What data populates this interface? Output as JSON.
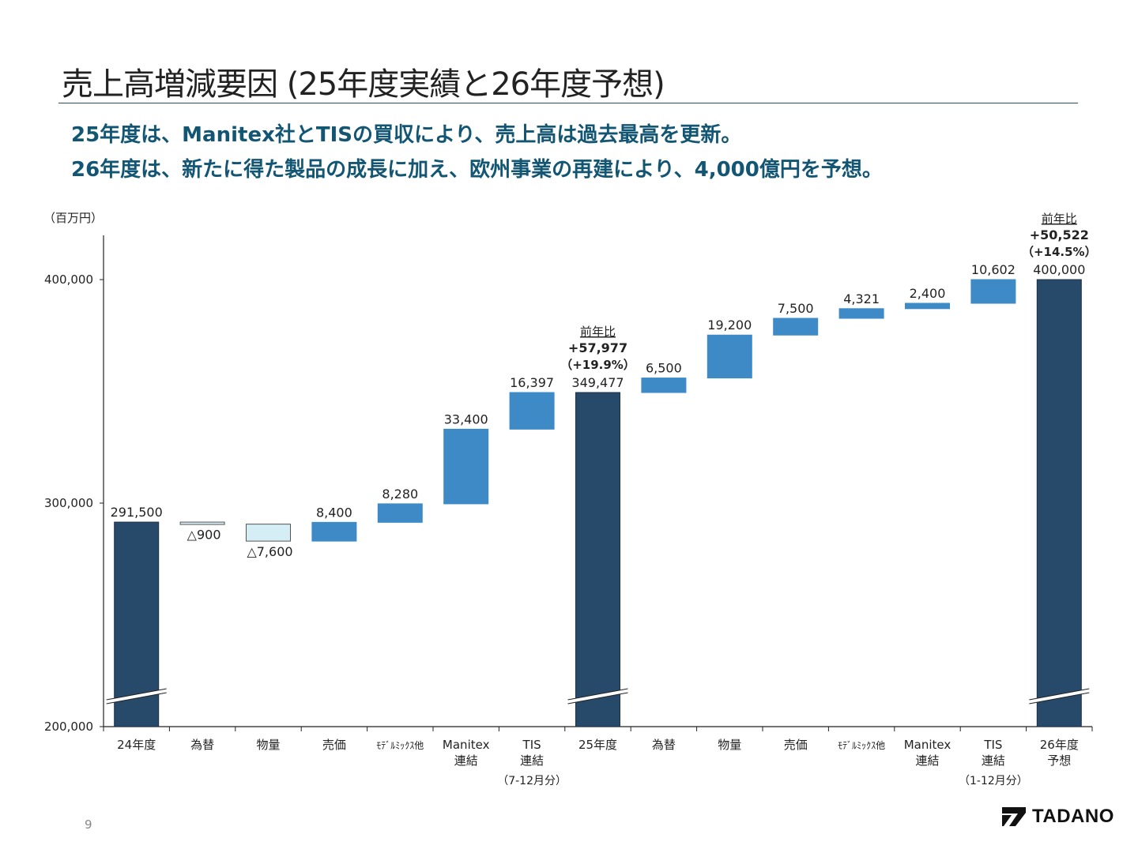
{
  "page": {
    "title": "売上高増減要因 (25年度実績と26年度予想)",
    "headline_1": "25年度は、Manitex社とTISの買収により、売上高は過去最高を更新。",
    "headline_2": "26年度は、新たに得た製品の成長に加え、欧州事業の再建により、4,000億円を予想。",
    "page_number": "9",
    "logo_text": "TADANO"
  },
  "colors": {
    "total_bar": "#27496a",
    "increase_bar": "#3d8ac7",
    "decrease_bar": "#d5edf5",
    "headline": "#135673"
  },
  "chart_data": {
    "type": "bar",
    "subtype": "waterfall",
    "unit_label": "（百万円）",
    "ylim": [
      200000,
      420000
    ],
    "y_ticks": [
      {
        "value": 200000,
        "label": "200,000"
      },
      {
        "value": 300000,
        "label": "300,000"
      },
      {
        "value": 400000,
        "label": "400,000"
      }
    ],
    "axis_break": true,
    "bars": [
      {
        "category": [
          "24年度"
        ],
        "kind": "total",
        "value": 291500,
        "label": "291,500"
      },
      {
        "category": [
          "為替"
        ],
        "kind": "decrease",
        "value": -900,
        "label": "△900"
      },
      {
        "category": [
          "物量"
        ],
        "kind": "decrease",
        "value": -7600,
        "label": "△7,600"
      },
      {
        "category": [
          "売価"
        ],
        "kind": "increase",
        "value": 8400,
        "label": "8,400"
      },
      {
        "category": [
          "ﾓﾃﾞﾙﾐｯｸｽ他"
        ],
        "kind": "increase",
        "value": 8280,
        "label": "8,280"
      },
      {
        "category": [
          "Manitex",
          "連結"
        ],
        "kind": "increase",
        "value": 33400,
        "label": "33,400"
      },
      {
        "category": [
          "TIS",
          "連結"
        ],
        "kind": "increase",
        "value": 16397,
        "label": "16,397",
        "note": "（7-12月分）"
      },
      {
        "category": [
          "25年度"
        ],
        "kind": "total",
        "value": 349477,
        "label": "349,477",
        "yoy": {
          "heading": "前年比",
          "diff": "+57,977",
          "pct": "（+19.9%）"
        }
      },
      {
        "category": [
          "為替"
        ],
        "kind": "increase",
        "value": 6500,
        "label": "6,500"
      },
      {
        "category": [
          "物量"
        ],
        "kind": "increase",
        "value": 19200,
        "label": "19,200"
      },
      {
        "category": [
          "売価"
        ],
        "kind": "increase",
        "value": 7500,
        "label": "7,500"
      },
      {
        "category": [
          "ﾓﾃﾞﾙﾐｯｸｽ他"
        ],
        "kind": "increase",
        "value": 4321,
        "label": "4,321"
      },
      {
        "category": [
          "Manitex",
          "連結"
        ],
        "kind": "increase",
        "value": 2400,
        "label": "2,400"
      },
      {
        "category": [
          "TIS",
          "連結"
        ],
        "kind": "increase",
        "value": 10602,
        "label": "10,602",
        "note": "（1-12月分）"
      },
      {
        "category": [
          "26年度",
          "予想"
        ],
        "kind": "total",
        "value": 400000,
        "label": "400,000",
        "yoy": {
          "heading": "前年比",
          "diff": "+50,522",
          "pct": "（+14.5%）"
        }
      }
    ]
  }
}
